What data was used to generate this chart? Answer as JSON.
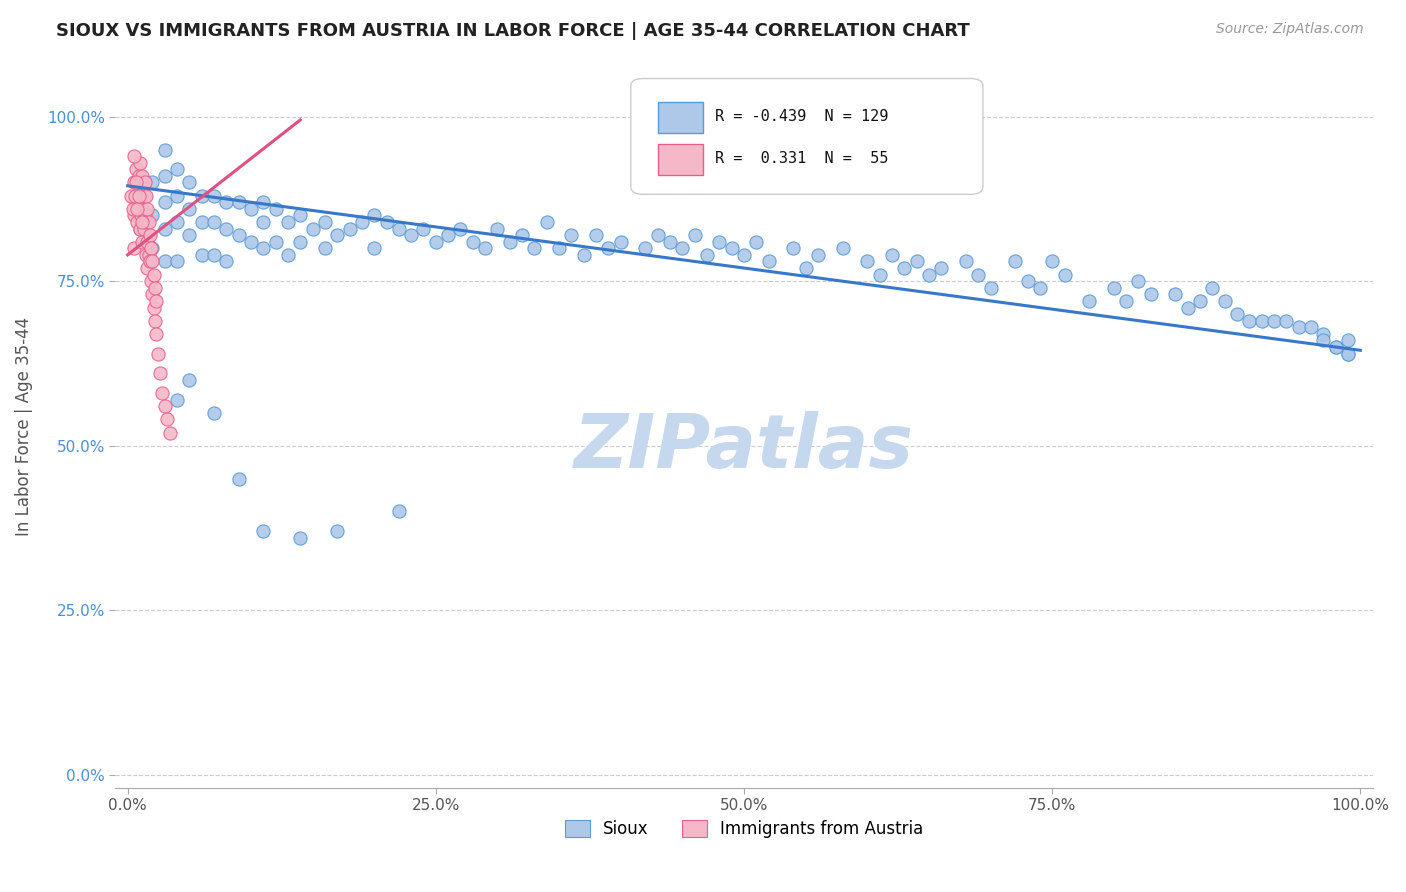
{
  "title": "SIOUX VS IMMIGRANTS FROM AUSTRIA IN LABOR FORCE | AGE 35-44 CORRELATION CHART",
  "source": "Source: ZipAtlas.com",
  "ylabel": "In Labor Force | Age 35-44",
  "blue_label": "Sioux",
  "pink_label": "Immigrants from Austria",
  "blue_R": -0.439,
  "blue_N": 129,
  "pink_R": 0.331,
  "pink_N": 55,
  "blue_color": "#adc8e8",
  "blue_edge_color": "#5b9bd5",
  "pink_color": "#f5b8c8",
  "pink_edge_color": "#e8608a",
  "blue_line_color": "#3878c8",
  "pink_line_color": "#e05080",
  "watermark_color": "#c5d8ed",
  "ytick_color": "#4a90d9",
  "xtick_color": "#555555",
  "ytick_labels": [
    "0.0%",
    "25.0%",
    "50.0%",
    "75.0%",
    "100.0%"
  ],
  "ytick_values": [
    0.0,
    0.25,
    0.5,
    0.75,
    1.0
  ],
  "xtick_labels": [
    "0.0%",
    "25.0%",
    "50.0%",
    "75.0%",
    "100.0%"
  ],
  "xtick_values": [
    0.0,
    0.25,
    0.5,
    0.75,
    1.0
  ],
  "blue_trend": [
    0.0,
    1.0,
    0.895,
    0.645
  ],
  "pink_trend": [
    0.0,
    0.14,
    0.79,
    0.995
  ],
  "blue_x": [
    0.01,
    0.01,
    0.02,
    0.02,
    0.02,
    0.03,
    0.03,
    0.03,
    0.03,
    0.03,
    0.04,
    0.04,
    0.04,
    0.04,
    0.05,
    0.05,
    0.05,
    0.06,
    0.06,
    0.06,
    0.07,
    0.07,
    0.07,
    0.08,
    0.08,
    0.08,
    0.09,
    0.09,
    0.1,
    0.1,
    0.11,
    0.11,
    0.11,
    0.12,
    0.12,
    0.13,
    0.13,
    0.14,
    0.14,
    0.15,
    0.16,
    0.16,
    0.17,
    0.18,
    0.19,
    0.2,
    0.2,
    0.21,
    0.22,
    0.23,
    0.24,
    0.25,
    0.26,
    0.27,
    0.28,
    0.29,
    0.3,
    0.31,
    0.32,
    0.33,
    0.34,
    0.35,
    0.36,
    0.37,
    0.38,
    0.39,
    0.4,
    0.42,
    0.43,
    0.44,
    0.45,
    0.46,
    0.47,
    0.48,
    0.49,
    0.5,
    0.51,
    0.52,
    0.54,
    0.55,
    0.56,
    0.58,
    0.6,
    0.61,
    0.62,
    0.63,
    0.64,
    0.65,
    0.66,
    0.68,
    0.69,
    0.7,
    0.72,
    0.73,
    0.74,
    0.75,
    0.76,
    0.78,
    0.8,
    0.81,
    0.82,
    0.83,
    0.85,
    0.86,
    0.87,
    0.88,
    0.89,
    0.9,
    0.91,
    0.92,
    0.93,
    0.94,
    0.95,
    0.96,
    0.97,
    0.97,
    0.98,
    0.98,
    0.99,
    0.99,
    0.99,
    0.04,
    0.05,
    0.07,
    0.09,
    0.11,
    0.14,
    0.17,
    0.22
  ],
  "blue_y": [
    0.88,
    0.83,
    0.9,
    0.85,
    0.8,
    0.95,
    0.91,
    0.87,
    0.83,
    0.78,
    0.92,
    0.88,
    0.84,
    0.78,
    0.9,
    0.86,
    0.82,
    0.88,
    0.84,
    0.79,
    0.88,
    0.84,
    0.79,
    0.87,
    0.83,
    0.78,
    0.87,
    0.82,
    0.86,
    0.81,
    0.87,
    0.84,
    0.8,
    0.86,
    0.81,
    0.84,
    0.79,
    0.85,
    0.81,
    0.83,
    0.84,
    0.8,
    0.82,
    0.83,
    0.84,
    0.85,
    0.8,
    0.84,
    0.83,
    0.82,
    0.83,
    0.81,
    0.82,
    0.83,
    0.81,
    0.8,
    0.83,
    0.81,
    0.82,
    0.8,
    0.84,
    0.8,
    0.82,
    0.79,
    0.82,
    0.8,
    0.81,
    0.8,
    0.82,
    0.81,
    0.8,
    0.82,
    0.79,
    0.81,
    0.8,
    0.79,
    0.81,
    0.78,
    0.8,
    0.77,
    0.79,
    0.8,
    0.78,
    0.76,
    0.79,
    0.77,
    0.78,
    0.76,
    0.77,
    0.78,
    0.76,
    0.74,
    0.78,
    0.75,
    0.74,
    0.78,
    0.76,
    0.72,
    0.74,
    0.72,
    0.75,
    0.73,
    0.73,
    0.71,
    0.72,
    0.74,
    0.72,
    0.7,
    0.69,
    0.69,
    0.69,
    0.69,
    0.68,
    0.68,
    0.67,
    0.66,
    0.65,
    0.65,
    0.64,
    0.64,
    0.66,
    0.57,
    0.6,
    0.55,
    0.45,
    0.37,
    0.36,
    0.37,
    0.4
  ],
  "pink_x": [
    0.005,
    0.005,
    0.005,
    0.007,
    0.007,
    0.008,
    0.008,
    0.009,
    0.009,
    0.01,
    0.01,
    0.01,
    0.011,
    0.011,
    0.012,
    0.012,
    0.012,
    0.013,
    0.013,
    0.014,
    0.014,
    0.015,
    0.015,
    0.015,
    0.016,
    0.016,
    0.016,
    0.017,
    0.017,
    0.018,
    0.018,
    0.019,
    0.019,
    0.02,
    0.02,
    0.021,
    0.021,
    0.022,
    0.022,
    0.023,
    0.023,
    0.025,
    0.026,
    0.028,
    0.03,
    0.032,
    0.034,
    0.003,
    0.004,
    0.005,
    0.006,
    0.007,
    0.008,
    0.009,
    0.012
  ],
  "pink_y": [
    0.9,
    0.85,
    0.8,
    0.92,
    0.87,
    0.88,
    0.84,
    0.91,
    0.86,
    0.93,
    0.88,
    0.83,
    0.9,
    0.85,
    0.91,
    0.86,
    0.81,
    0.88,
    0.83,
    0.9,
    0.85,
    0.88,
    0.84,
    0.79,
    0.86,
    0.81,
    0.77,
    0.84,
    0.79,
    0.82,
    0.78,
    0.8,
    0.75,
    0.78,
    0.73,
    0.76,
    0.71,
    0.74,
    0.69,
    0.72,
    0.67,
    0.64,
    0.61,
    0.58,
    0.56,
    0.54,
    0.52,
    0.88,
    0.86,
    0.94,
    0.88,
    0.9,
    0.86,
    0.88,
    0.84
  ]
}
